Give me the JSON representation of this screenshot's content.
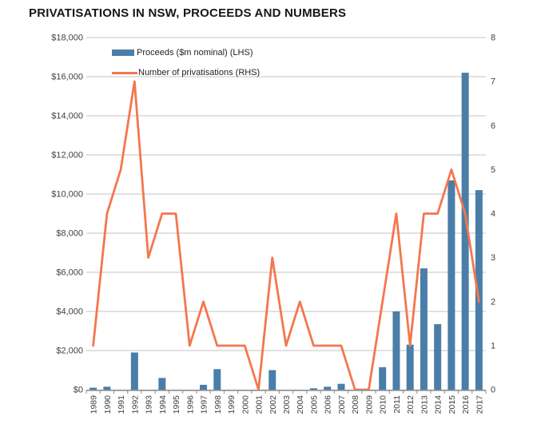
{
  "title": "PRIVATISATIONS IN NSW, PROCEEDS AND NUMBERS",
  "legend": [
    {
      "label": "Proceeds ($m nominal) (LHS)",
      "marker": "bar-swatch-icon"
    },
    {
      "label": "Number of privatisations (RHS)",
      "marker": "line-swatch-icon"
    }
  ],
  "colors": {
    "bar": "#4A7EA8",
    "line": "#F4764E",
    "gridline": "#C3C3C3",
    "axis_line": "#8C8C8C",
    "axis_text": "#3F3F3F"
  },
  "chart_data": {
    "type": "bar",
    "subtype": "bar+line combo, dual axis",
    "title": "PRIVATISATIONS IN NSW, PROCEEDS AND NUMBERS",
    "categories": [
      "1989",
      "1990",
      "1991",
      "1992",
      "1993",
      "1994",
      "1995",
      "1996",
      "1997",
      "1998",
      "1999",
      "2000",
      "2001",
      "2002",
      "2003",
      "2004",
      "2005",
      "2006",
      "2007",
      "2008",
      "2009",
      "2010",
      "2011",
      "2012",
      "2013",
      "2014",
      "2015",
      "2016",
      "2017"
    ],
    "series": [
      {
        "name": "Proceeds ($m nominal) (LHS)",
        "type": "bar",
        "axis": "left",
        "values": [
          100,
          150,
          0,
          1900,
          0,
          600,
          0,
          0,
          250,
          1050,
          0,
          0,
          0,
          1000,
          0,
          0,
          70,
          150,
          300,
          0,
          0,
          1150,
          4000,
          2300,
          6200,
          3350,
          10700,
          16200,
          10200
        ]
      },
      {
        "name": "Number of privatisations (RHS)",
        "type": "line",
        "axis": "right",
        "values": [
          1,
          4,
          5,
          7,
          3,
          4,
          4,
          1,
          2,
          1,
          1,
          1,
          0,
          3,
          1,
          2,
          1,
          1,
          1,
          0,
          0,
          2,
          4,
          1,
          4,
          4,
          5,
          4,
          2
        ]
      }
    ],
    "left_axis": {
      "min": 0,
      "max": 18000,
      "step": 2000,
      "tick_labels": [
        "$0",
        "$2,000",
        "$4,000",
        "$6,000",
        "$8,000",
        "$10,000",
        "$12,000",
        "$14,000",
        "$16,000",
        "$18,000"
      ]
    },
    "right_axis": {
      "min": 0,
      "max": 8,
      "step": 1,
      "tick_labels": [
        "0",
        "1",
        "2",
        "3",
        "4",
        "5",
        "6",
        "7",
        "8"
      ]
    },
    "grid": true,
    "legend_position": "top-left inside plot"
  }
}
